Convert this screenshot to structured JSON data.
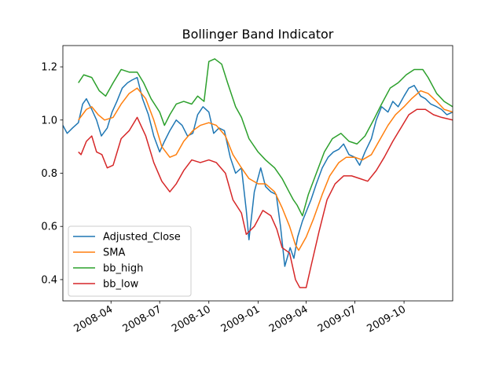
{
  "chart_data": {
    "type": "line",
    "title": "Bollinger Band Indicator",
    "xlabel": "",
    "ylabel": "",
    "x_range": [
      "2008-01-02",
      "2009-12-31"
    ],
    "ylim": [
      0.32,
      1.28
    ],
    "x_ticks": [
      {
        "date": "2008-04-01",
        "label": "2008-04"
      },
      {
        "date": "2008-07-01",
        "label": "2008-07"
      },
      {
        "date": "2008-10-01",
        "label": "2008-10"
      },
      {
        "date": "2009-01-01",
        "label": "2009-01"
      },
      {
        "date": "2009-04-01",
        "label": "2009-04"
      },
      {
        "date": "2009-07-01",
        "label": "2009-07"
      },
      {
        "date": "2009-10-01",
        "label": "2009-10"
      }
    ],
    "y_ticks": [
      0.4,
      0.6,
      0.8,
      1.0,
      1.2
    ],
    "y_tick_labels": [
      "0.4",
      "0.6",
      "0.8",
      "1.0",
      "1.2"
    ],
    "grid": false,
    "legend_position": "lower-left",
    "series": [
      {
        "name": "Adjusted_Close",
        "color": "#1f77b4",
        "points": [
          [
            "2008-01-02",
            0.98
          ],
          [
            "2008-01-10",
            0.95
          ],
          [
            "2008-01-20",
            0.97
          ],
          [
            "2008-01-31",
            0.99
          ],
          [
            "2008-02-08",
            1.06
          ],
          [
            "2008-02-15",
            1.08
          ],
          [
            "2008-02-25",
            1.04
          ],
          [
            "2008-03-05",
            1.0
          ],
          [
            "2008-03-14",
            0.94
          ],
          [
            "2008-03-25",
            0.97
          ],
          [
            "2008-04-03",
            1.03
          ],
          [
            "2008-04-12",
            1.07
          ],
          [
            "2008-04-22",
            1.12
          ],
          [
            "2008-05-02",
            1.14
          ],
          [
            "2008-05-10",
            1.15
          ],
          [
            "2008-05-20",
            1.16
          ],
          [
            "2008-05-30",
            1.08
          ],
          [
            "2008-06-10",
            1.02
          ],
          [
            "2008-06-20",
            0.94
          ],
          [
            "2008-07-01",
            0.88
          ],
          [
            "2008-07-10",
            0.92
          ],
          [
            "2008-07-20",
            0.96
          ],
          [
            "2008-08-01",
            1.0
          ],
          [
            "2008-08-12",
            0.98
          ],
          [
            "2008-08-22",
            0.94
          ],
          [
            "2008-09-01",
            0.95
          ],
          [
            "2008-09-10",
            1.02
          ],
          [
            "2008-09-20",
            1.05
          ],
          [
            "2008-10-01",
            1.03
          ],
          [
            "2008-10-10",
            0.95
          ],
          [
            "2008-10-20",
            0.97
          ],
          [
            "2008-10-30",
            0.96
          ],
          [
            "2008-11-10",
            0.86
          ],
          [
            "2008-11-20",
            0.8
          ],
          [
            "2008-12-01",
            0.82
          ],
          [
            "2008-12-10",
            0.66
          ],
          [
            "2008-12-15",
            0.55
          ],
          [
            "2008-12-25",
            0.73
          ],
          [
            "2009-01-06",
            0.82
          ],
          [
            "2009-01-15",
            0.75
          ],
          [
            "2009-01-25",
            0.73
          ],
          [
            "2009-02-04",
            0.72
          ],
          [
            "2009-02-12",
            0.6
          ],
          [
            "2009-02-20",
            0.45
          ],
          [
            "2009-03-02",
            0.52
          ],
          [
            "2009-03-09",
            0.48
          ],
          [
            "2009-03-16",
            0.56
          ],
          [
            "2009-03-25",
            0.62
          ],
          [
            "2009-04-02",
            0.66
          ],
          [
            "2009-04-10",
            0.7
          ],
          [
            "2009-04-20",
            0.76
          ],
          [
            "2009-05-01",
            0.82
          ],
          [
            "2009-05-12",
            0.86
          ],
          [
            "2009-05-22",
            0.88
          ],
          [
            "2009-06-01",
            0.89
          ],
          [
            "2009-06-10",
            0.91
          ],
          [
            "2009-06-20",
            0.87
          ],
          [
            "2009-07-01",
            0.86
          ],
          [
            "2009-07-10",
            0.83
          ],
          [
            "2009-07-20",
            0.88
          ],
          [
            "2009-08-01",
            0.93
          ],
          [
            "2009-08-10",
            1.0
          ],
          [
            "2009-08-20",
            1.05
          ],
          [
            "2009-09-01",
            1.03
          ],
          [
            "2009-09-10",
            1.07
          ],
          [
            "2009-09-20",
            1.05
          ],
          [
            "2009-10-01",
            1.09
          ],
          [
            "2009-10-10",
            1.12
          ],
          [
            "2009-10-20",
            1.13
          ],
          [
            "2009-11-01",
            1.09
          ],
          [
            "2009-11-10",
            1.08
          ],
          [
            "2009-11-20",
            1.06
          ],
          [
            "2009-12-01",
            1.05
          ],
          [
            "2009-12-10",
            1.04
          ],
          [
            "2009-12-20",
            1.02
          ],
          [
            "2009-12-31",
            1.03
          ]
        ]
      },
      {
        "name": "SMA",
        "color": "#ff7f0e",
        "points": [
          [
            "2008-01-31",
            1.0
          ],
          [
            "2008-02-15",
            1.04
          ],
          [
            "2008-02-25",
            1.05
          ],
          [
            "2008-03-08",
            1.02
          ],
          [
            "2008-03-20",
            1.0
          ],
          [
            "2008-04-05",
            1.01
          ],
          [
            "2008-04-20",
            1.06
          ],
          [
            "2008-05-05",
            1.1
          ],
          [
            "2008-05-20",
            1.12
          ],
          [
            "2008-06-05",
            1.08
          ],
          [
            "2008-06-20",
            1.0
          ],
          [
            "2008-07-05",
            0.9
          ],
          [
            "2008-07-20",
            0.86
          ],
          [
            "2008-08-01",
            0.87
          ],
          [
            "2008-08-15",
            0.92
          ],
          [
            "2008-09-01",
            0.96
          ],
          [
            "2008-09-15",
            0.98
          ],
          [
            "2008-10-01",
            0.99
          ],
          [
            "2008-10-15",
            0.98
          ],
          [
            "2008-11-01",
            0.94
          ],
          [
            "2008-11-15",
            0.87
          ],
          [
            "2008-12-01",
            0.82
          ],
          [
            "2008-12-15",
            0.78
          ],
          [
            "2009-01-01",
            0.76
          ],
          [
            "2009-01-15",
            0.76
          ],
          [
            "2009-02-01",
            0.73
          ],
          [
            "2009-02-15",
            0.67
          ],
          [
            "2009-03-01",
            0.6
          ],
          [
            "2009-03-12",
            0.53
          ],
          [
            "2009-03-18",
            0.51
          ],
          [
            "2009-04-01",
            0.56
          ],
          [
            "2009-04-15",
            0.63
          ],
          [
            "2009-05-01",
            0.72
          ],
          [
            "2009-05-15",
            0.79
          ],
          [
            "2009-06-01",
            0.84
          ],
          [
            "2009-06-15",
            0.86
          ],
          [
            "2009-07-01",
            0.86
          ],
          [
            "2009-07-15",
            0.85
          ],
          [
            "2009-08-01",
            0.87
          ],
          [
            "2009-08-15",
            0.92
          ],
          [
            "2009-09-01",
            0.98
          ],
          [
            "2009-09-15",
            1.02
          ],
          [
            "2009-10-01",
            1.05
          ],
          [
            "2009-10-15",
            1.08
          ],
          [
            "2009-11-01",
            1.11
          ],
          [
            "2009-11-15",
            1.1
          ],
          [
            "2009-12-01",
            1.07
          ],
          [
            "2009-12-15",
            1.04
          ],
          [
            "2009-12-31",
            1.03
          ]
        ]
      },
      {
        "name": "bb_high",
        "color": "#2ca02c",
        "points": [
          [
            "2008-01-31",
            1.14
          ],
          [
            "2008-02-10",
            1.17
          ],
          [
            "2008-02-25",
            1.16
          ],
          [
            "2008-03-10",
            1.11
          ],
          [
            "2008-03-22",
            1.09
          ],
          [
            "2008-04-05",
            1.14
          ],
          [
            "2008-04-20",
            1.19
          ],
          [
            "2008-05-05",
            1.18
          ],
          [
            "2008-05-20",
            1.18
          ],
          [
            "2008-06-01",
            1.14
          ],
          [
            "2008-06-15",
            1.08
          ],
          [
            "2008-07-01",
            1.03
          ],
          [
            "2008-07-10",
            0.98
          ],
          [
            "2008-07-20",
            1.02
          ],
          [
            "2008-08-01",
            1.06
          ],
          [
            "2008-08-15",
            1.07
          ],
          [
            "2008-08-30",
            1.06
          ],
          [
            "2008-09-10",
            1.09
          ],
          [
            "2008-09-22",
            1.07
          ],
          [
            "2008-10-01",
            1.22
          ],
          [
            "2008-10-12",
            1.23
          ],
          [
            "2008-10-25",
            1.21
          ],
          [
            "2008-11-05",
            1.14
          ],
          [
            "2008-11-20",
            1.05
          ],
          [
            "2008-12-01",
            1.01
          ],
          [
            "2008-12-15",
            0.93
          ],
          [
            "2009-01-01",
            0.88
          ],
          [
            "2009-01-15",
            0.85
          ],
          [
            "2009-02-01",
            0.82
          ],
          [
            "2009-02-15",
            0.78
          ],
          [
            "2009-02-28",
            0.73
          ],
          [
            "2009-03-08",
            0.7
          ],
          [
            "2009-03-15",
            0.68
          ],
          [
            "2009-03-25",
            0.64
          ],
          [
            "2009-04-05",
            0.72
          ],
          [
            "2009-04-20",
            0.8
          ],
          [
            "2009-05-05",
            0.88
          ],
          [
            "2009-05-20",
            0.93
          ],
          [
            "2009-06-05",
            0.95
          ],
          [
            "2009-06-20",
            0.92
          ],
          [
            "2009-07-05",
            0.91
          ],
          [
            "2009-07-20",
            0.94
          ],
          [
            "2009-08-05",
            1.0
          ],
          [
            "2009-08-20",
            1.06
          ],
          [
            "2009-09-05",
            1.12
          ],
          [
            "2009-09-20",
            1.14
          ],
          [
            "2009-10-05",
            1.17
          ],
          [
            "2009-10-20",
            1.19
          ],
          [
            "2009-11-05",
            1.19
          ],
          [
            "2009-11-15",
            1.16
          ],
          [
            "2009-12-01",
            1.1
          ],
          [
            "2009-12-15",
            1.07
          ],
          [
            "2009-12-31",
            1.05
          ]
        ]
      },
      {
        "name": "bb_low",
        "color": "#d62728",
        "points": [
          [
            "2008-01-31",
            0.88
          ],
          [
            "2008-02-05",
            0.87
          ],
          [
            "2008-02-15",
            0.92
          ],
          [
            "2008-02-25",
            0.94
          ],
          [
            "2008-03-05",
            0.88
          ],
          [
            "2008-03-15",
            0.87
          ],
          [
            "2008-03-25",
            0.82
          ],
          [
            "2008-04-05",
            0.83
          ],
          [
            "2008-04-20",
            0.93
          ],
          [
            "2008-05-05",
            0.96
          ],
          [
            "2008-05-20",
            1.01
          ],
          [
            "2008-06-05",
            0.94
          ],
          [
            "2008-06-20",
            0.84
          ],
          [
            "2008-07-05",
            0.77
          ],
          [
            "2008-07-20",
            0.73
          ],
          [
            "2008-08-01",
            0.76
          ],
          [
            "2008-08-15",
            0.81
          ],
          [
            "2008-08-30",
            0.85
          ],
          [
            "2008-09-15",
            0.84
          ],
          [
            "2008-10-01",
            0.85
          ],
          [
            "2008-10-15",
            0.84
          ],
          [
            "2008-11-01",
            0.8
          ],
          [
            "2008-11-15",
            0.7
          ],
          [
            "2008-12-01",
            0.65
          ],
          [
            "2008-12-10",
            0.57
          ],
          [
            "2008-12-25",
            0.6
          ],
          [
            "2009-01-10",
            0.66
          ],
          [
            "2009-01-25",
            0.64
          ],
          [
            "2009-02-05",
            0.59
          ],
          [
            "2009-02-15",
            0.52
          ],
          [
            "2009-03-01",
            0.5
          ],
          [
            "2009-03-12",
            0.4
          ],
          [
            "2009-03-20",
            0.37
          ],
          [
            "2009-04-01",
            0.37
          ],
          [
            "2009-04-10",
            0.45
          ],
          [
            "2009-04-25",
            0.58
          ],
          [
            "2009-05-10",
            0.7
          ],
          [
            "2009-05-25",
            0.76
          ],
          [
            "2009-06-10",
            0.79
          ],
          [
            "2009-06-25",
            0.79
          ],
          [
            "2009-07-10",
            0.78
          ],
          [
            "2009-07-25",
            0.77
          ],
          [
            "2009-08-10",
            0.81
          ],
          [
            "2009-08-25",
            0.86
          ],
          [
            "2009-09-10",
            0.92
          ],
          [
            "2009-09-25",
            0.97
          ],
          [
            "2009-10-10",
            1.02
          ],
          [
            "2009-10-25",
            1.04
          ],
          [
            "2009-11-10",
            1.04
          ],
          [
            "2009-11-25",
            1.02
          ],
          [
            "2009-12-10",
            1.01
          ],
          [
            "2009-12-31",
            1.0
          ]
        ]
      }
    ]
  }
}
